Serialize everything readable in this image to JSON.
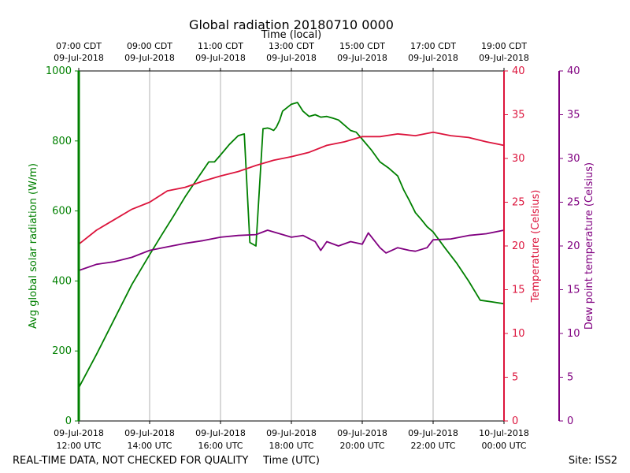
{
  "chart_data": {
    "type": "line",
    "title": "Global radiation 20180710 0000",
    "top_axis_label": "Time (local)",
    "xlabel": "Time (UTC)",
    "footer_left": "REAL-TIME DATA, NOT CHECKED FOR QUALITY",
    "footer_right": "Site: ISS2",
    "x_range_utc_hours": [
      12,
      24
    ],
    "grid": "vertical",
    "x_ticks": [
      {
        "hour": 12,
        "utc_date": "09-Jul-2018",
        "utc_time": "12:00 UTC"
      },
      {
        "hour": 14,
        "utc_date": "09-Jul-2018",
        "utc_time": "14:00 UTC"
      },
      {
        "hour": 16,
        "utc_date": "09-Jul-2018",
        "utc_time": "16:00 UTC"
      },
      {
        "hour": 18,
        "utc_date": "09-Jul-2018",
        "utc_time": "18:00 UTC"
      },
      {
        "hour": 20,
        "utc_date": "09-Jul-2018",
        "utc_time": "20:00 UTC"
      },
      {
        "hour": 22,
        "utc_date": "09-Jul-2018",
        "utc_time": "22:00 UTC"
      },
      {
        "hour": 24,
        "utc_date": "10-Jul-2018",
        "utc_time": "00:00 UTC"
      }
    ],
    "top_ticks": [
      {
        "hour": 12,
        "local_time": "07:00 CDT",
        "local_date": "09-Jul-2018"
      },
      {
        "hour": 14,
        "local_time": "09:00 CDT",
        "local_date": "09-Jul-2018"
      },
      {
        "hour": 16,
        "local_time": "11:00 CDT",
        "local_date": "09-Jul-2018"
      },
      {
        "hour": 18,
        "local_time": "13:00 CDT",
        "local_date": "09-Jul-2018"
      },
      {
        "hour": 20,
        "local_time": "15:00 CDT",
        "local_date": "09-Jul-2018"
      },
      {
        "hour": 22,
        "local_time": "17:00 CDT",
        "local_date": "09-Jul-2018"
      },
      {
        "hour": 24,
        "local_time": "19:00 CDT",
        "local_date": "09-Jul-2018"
      }
    ],
    "axes": {
      "radiation": {
        "label": "Avg global solar radiation (W/m)",
        "range": [
          0,
          1000
        ],
        "ticks": [
          0,
          200,
          400,
          600,
          800,
          1000
        ],
        "color": "#008000"
      },
      "temperature": {
        "label": "Temperature (Celsius)",
        "range": [
          0,
          40
        ],
        "ticks": [
          0,
          5,
          10,
          15,
          20,
          25,
          30,
          35,
          40
        ],
        "color": "#dc143c"
      },
      "dewpoint": {
        "label": "Dew point temperature (Celsius)",
        "range": [
          0,
          40
        ],
        "ticks": [
          0,
          5,
          10,
          15,
          20,
          25,
          30,
          35,
          40
        ],
        "color": "#800080"
      }
    },
    "series": [
      {
        "axis": "radiation",
        "color": "#008000",
        "x": [
          12.0,
          12.5,
          13.0,
          13.5,
          14.0,
          14.33,
          14.67,
          15.0,
          15.33,
          15.67,
          15.83,
          16.0,
          16.25,
          16.5,
          16.67,
          16.83,
          17.0,
          17.2,
          17.33,
          17.4,
          17.5,
          17.58,
          17.67,
          17.75,
          18.0,
          18.17,
          18.33,
          18.5,
          18.67,
          18.83,
          19.0,
          19.17,
          19.33,
          19.5,
          19.67,
          19.83,
          20.0,
          20.25,
          20.5,
          20.75,
          21.0,
          21.17,
          21.33,
          21.5,
          21.67,
          21.83,
          22.0,
          22.33,
          22.67,
          23.0,
          23.33,
          23.67,
          24.0
        ],
        "y": [
          95,
          190,
          290,
          390,
          475,
          530,
          585,
          640,
          690,
          740,
          740,
          760,
          790,
          815,
          820,
          510,
          500,
          835,
          837,
          835,
          830,
          840,
          860,
          885,
          905,
          910,
          885,
          870,
          875,
          868,
          870,
          865,
          860,
          845,
          830,
          825,
          805,
          775,
          740,
          722,
          700,
          660,
          630,
          595,
          575,
          555,
          540,
          495,
          450,
          400,
          345,
          340,
          335
        ]
      },
      {
        "axis": "temperature",
        "color": "#dc143c",
        "x": [
          12.0,
          12.5,
          13.0,
          13.5,
          14.0,
          14.5,
          15.0,
          15.5,
          16.0,
          16.5,
          17.0,
          17.5,
          18.0,
          18.5,
          19.0,
          19.5,
          20.0,
          20.5,
          21.0,
          21.5,
          22.0,
          22.5,
          23.0,
          23.5,
          24.0
        ],
        "y": [
          20.2,
          21.8,
          23.0,
          24.2,
          25.0,
          26.3,
          26.7,
          27.4,
          28.0,
          28.5,
          29.2,
          29.8,
          30.2,
          30.7,
          31.5,
          31.9,
          32.5,
          32.5,
          32.8,
          32.6,
          33.0,
          32.6,
          32.4,
          31.9,
          31.5
        ]
      },
      {
        "axis": "dewpoint",
        "color": "#800080",
        "x": [
          12.0,
          12.5,
          13.0,
          13.5,
          14.0,
          14.5,
          15.0,
          15.5,
          16.0,
          16.5,
          17.0,
          17.33,
          17.67,
          18.0,
          18.33,
          18.67,
          18.83,
          19.0,
          19.33,
          19.67,
          20.0,
          20.17,
          20.5,
          20.67,
          21.0,
          21.33,
          21.5,
          21.83,
          22.0,
          22.5,
          23.0,
          23.5,
          24.0
        ],
        "y": [
          17.2,
          17.9,
          18.2,
          18.7,
          19.5,
          19.9,
          20.3,
          20.6,
          21.0,
          21.2,
          21.3,
          21.8,
          21.4,
          21.0,
          21.2,
          20.5,
          19.5,
          20.5,
          20.0,
          20.5,
          20.2,
          21.5,
          19.8,
          19.2,
          19.8,
          19.5,
          19.4,
          19.8,
          20.7,
          20.8,
          21.2,
          21.4,
          21.8
        ]
      }
    ]
  }
}
